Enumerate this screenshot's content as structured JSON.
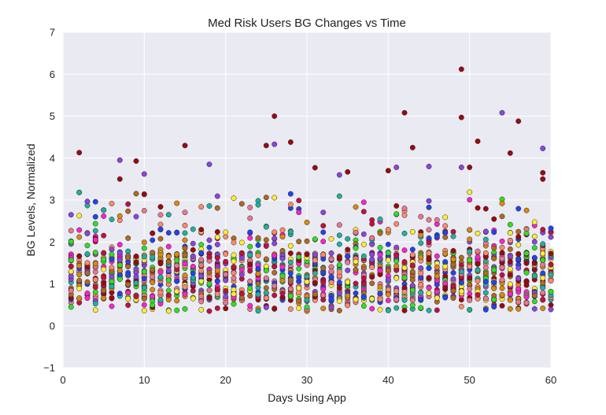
{
  "chart_data": {
    "type": "scatter",
    "title": "Med Risk Users BG Changes vs Time",
    "xlabel": "Days Using App",
    "ylabel": "BG Levels, Normalized",
    "xlim": [
      0,
      60
    ],
    "ylim": [
      -1,
      7
    ],
    "xticks": [
      "0",
      "10",
      "20",
      "30",
      "40",
      "50",
      "60"
    ],
    "yticks": [
      "−1",
      "0",
      "1",
      "2",
      "3",
      "4",
      "5",
      "6",
      "7"
    ],
    "grid": true,
    "legend": "none",
    "colors": {
      "background": "#eaeaf2",
      "grid": "#ffffff",
      "series_palette": [
        "#9b0a0e",
        "#8b44e0",
        "#e87890",
        "#c21040",
        "#31e020",
        "#2244ee",
        "#d98a10",
        "#1fb29c",
        "#ffee33",
        "#ff22cc",
        "#ff8a6a",
        "#b06a20"
      ]
    },
    "highlight_points": [
      {
        "x": 2,
        "y": 4.13
      },
      {
        "x": 7,
        "y": 3.95
      },
      {
        "x": 7,
        "y": 3.5
      },
      {
        "x": 9,
        "y": 3.93
      },
      {
        "x": 10,
        "y": 3.62
      },
      {
        "x": 10,
        "y": 3.14
      },
      {
        "x": 15,
        "y": 4.3
      },
      {
        "x": 18,
        "y": 3.85
      },
      {
        "x": 25,
        "y": 4.3
      },
      {
        "x": 26,
        "y": 5.0
      },
      {
        "x": 26,
        "y": 4.33
      },
      {
        "x": 28,
        "y": 4.38
      },
      {
        "x": 31,
        "y": 3.77
      },
      {
        "x": 34,
        "y": 3.6
      },
      {
        "x": 35,
        "y": 3.67
      },
      {
        "x": 40,
        "y": 3.7
      },
      {
        "x": 41,
        "y": 3.78
      },
      {
        "x": 42,
        "y": 5.08
      },
      {
        "x": 43,
        "y": 4.25
      },
      {
        "x": 45,
        "y": 3.8
      },
      {
        "x": 49,
        "y": 6.12
      },
      {
        "x": 49,
        "y": 4.97
      },
      {
        "x": 49,
        "y": 3.78
      },
      {
        "x": 50,
        "y": 3.78
      },
      {
        "x": 51,
        "y": 4.4
      },
      {
        "x": 54,
        "y": 5.08
      },
      {
        "x": 55,
        "y": 4.12
      },
      {
        "x": 56,
        "y": 4.88
      },
      {
        "x": 59,
        "y": 4.23
      },
      {
        "x": 59,
        "y": 3.65
      },
      {
        "x": 59,
        "y": 3.5
      }
    ]
  }
}
